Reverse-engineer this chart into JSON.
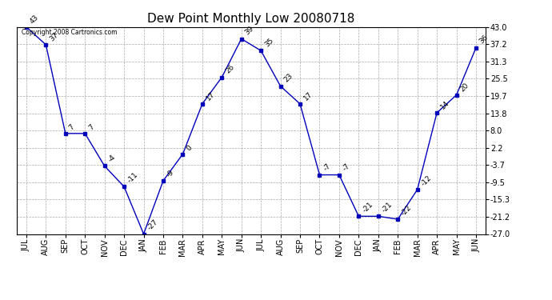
{
  "title": "Dew Point Monthly Low 20080718",
  "categories": [
    "JUL",
    "AUG",
    "SEP",
    "OCT",
    "NOV",
    "DEC",
    "JAN",
    "FEB",
    "MAR",
    "APR",
    "MAY",
    "JUN",
    "JUL",
    "AUG",
    "SEP",
    "OCT",
    "NOV",
    "DEC",
    "JAN",
    "FEB",
    "MAR",
    "APR",
    "MAY",
    "JUN"
  ],
  "values": [
    43,
    37,
    7,
    7,
    -4,
    -11,
    -27,
    -9,
    0,
    17,
    26,
    39,
    35,
    23,
    17,
    -7,
    -7,
    -21,
    -21,
    -22,
    -12,
    14,
    20,
    36
  ],
  "yticks": [
    43.0,
    37.2,
    31.3,
    25.5,
    19.7,
    13.8,
    8.0,
    2.2,
    -3.7,
    -9.5,
    -15.3,
    -21.2,
    -27.0
  ],
  "ylim": [
    -27.0,
    43.0
  ],
  "line_color": "#0000bb",
  "marker_color": "#0000bb",
  "bg_color": "#ffffff",
  "grid_color": "#aaaaaa",
  "copyright": "Copyright 2008 Cartronics.com",
  "label_fontsize": 6.5,
  "title_fontsize": 11
}
